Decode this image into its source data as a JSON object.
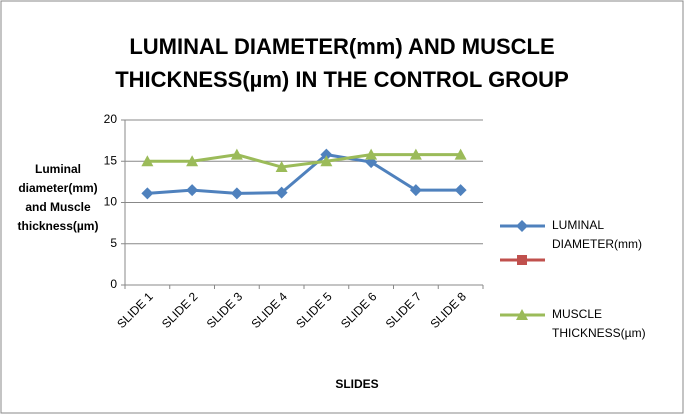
{
  "chart_data": {
    "type": "line",
    "title": "LUMINAL DIAMETER(mm) AND MUSCLE THICKNESS(µm) IN THE CONTROL GROUP",
    "x_label": "SLIDES",
    "y_label": "Luminal diameter(mm) and Muscle thickness(µm)",
    "categories": [
      "SLIDE 1",
      "SLIDE 2",
      "SLIDE 3",
      "SLIDE 4",
      "SLIDE 5",
      "SLIDE 6",
      "SLIDE 7",
      "SLIDE 8"
    ],
    "series": [
      {
        "name": "LUMINAL DIAMETER(mm)",
        "color": "#4f81bd",
        "marker": "diamond",
        "values": [
          11.1,
          11.5,
          11.1,
          11.2,
          15.8,
          14.9,
          11.5,
          11.5
        ]
      },
      {
        "name": null,
        "color": "#c0504d",
        "marker": "square",
        "values": [
          null,
          null,
          null,
          null,
          null,
          null,
          null,
          null
        ]
      },
      {
        "name": "MUSCLE THICKNESS(µm)",
        "color": "#9bbb59",
        "marker": "triangle",
        "values": [
          15.0,
          15.0,
          15.8,
          14.3,
          15.0,
          15.8,
          15.8,
          15.8
        ]
      }
    ],
    "ylim": [
      0,
      20
    ],
    "yticks": [
      0,
      5,
      10,
      15,
      20
    ],
    "grid": true,
    "legend": "right"
  }
}
